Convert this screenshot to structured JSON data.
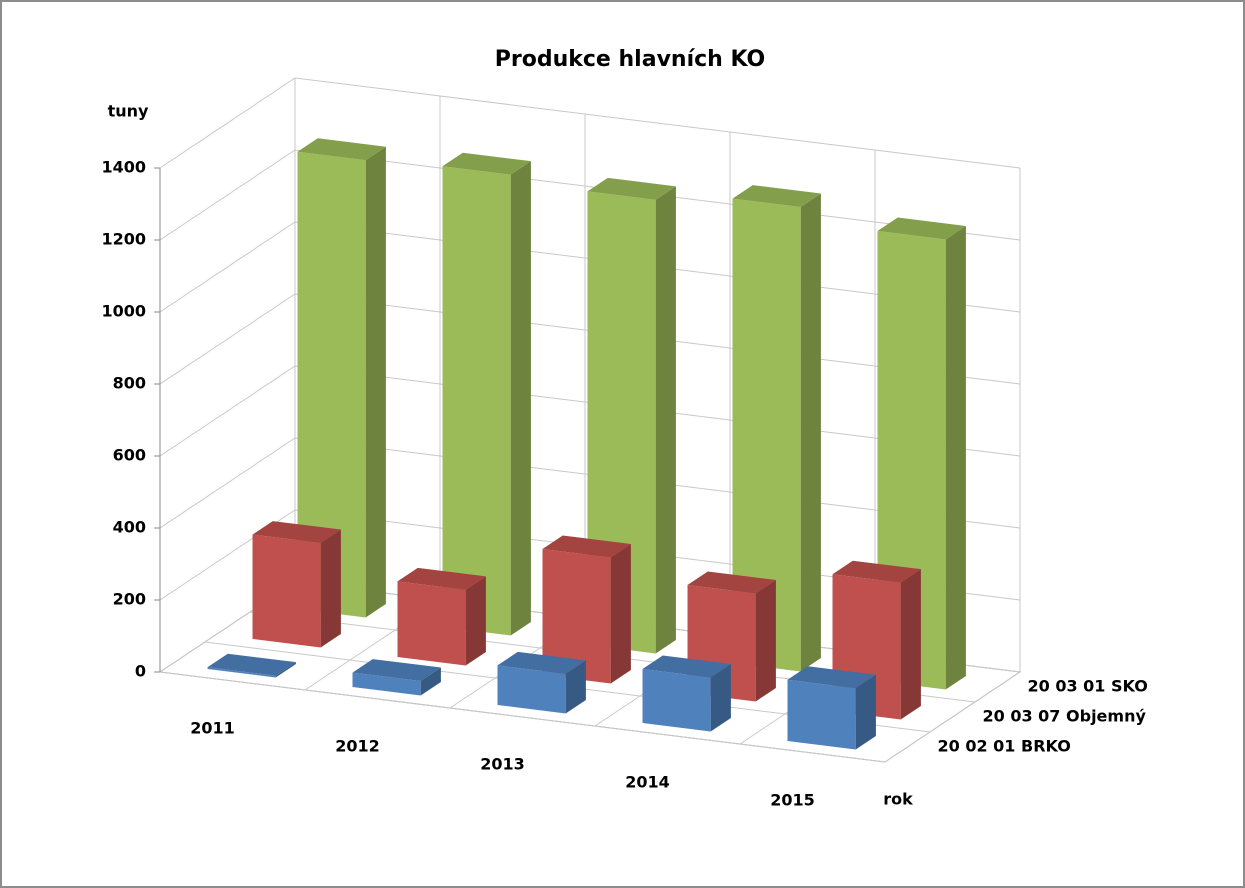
{
  "chart_data": {
    "type": "bar3d",
    "title": "Produkce hlavních KO",
    "y_label": "tuny",
    "x_label": "rok",
    "categories": [
      "2011",
      "2012",
      "2013",
      "2014",
      "2015"
    ],
    "series": [
      {
        "name": "20 02 01 BRKO",
        "color": "#4f81bd",
        "values": [
          5,
          40,
          110,
          150,
          170
        ]
      },
      {
        "name": "20 03 07 Objemný",
        "color": "#c0504d",
        "values": [
          290,
          210,
          350,
          300,
          380
        ]
      },
      {
        "name": "20 03 01 SKO",
        "color": "#9bbb59",
        "values": [
          1270,
          1280,
          1260,
          1290,
          1250
        ]
      }
    ],
    "ylim": [
      0,
      1400
    ],
    "yticks": [
      0,
      200,
      400,
      600,
      800,
      1000,
      1200,
      1400
    ],
    "grid": true
  }
}
